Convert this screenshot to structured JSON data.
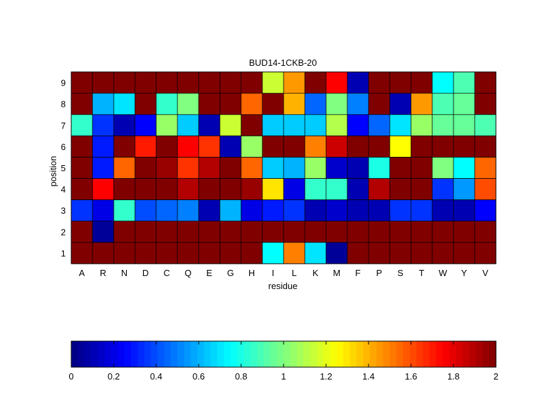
{
  "chart_data": {
    "type": "heatmap",
    "title": "BUD14-1CKB-20",
    "xlabel": "residue",
    "ylabel": "position",
    "x_categories": [
      "A",
      "R",
      "N",
      "D",
      "C",
      "Q",
      "E",
      "G",
      "H",
      "I",
      "L",
      "K",
      "M",
      "F",
      "P",
      "S",
      "T",
      "W",
      "Y",
      "V"
    ],
    "y_categories": [
      "1",
      "2",
      "3",
      "4",
      "5",
      "6",
      "7",
      "8",
      "9"
    ],
    "values": [
      [
        2.0,
        2.0,
        2.0,
        2.0,
        2.0,
        2.0,
        2.0,
        2.0,
        2.0,
        0.75,
        1.5,
        0.7,
        0.05,
        2.0,
        2.0,
        2.0,
        2.0,
        2.0,
        2.0,
        2.0
      ],
      [
        2.0,
        0.05,
        2.0,
        2.0,
        2.0,
        2.0,
        2.0,
        2.0,
        2.0,
        2.0,
        2.0,
        2.0,
        2.0,
        2.0,
        2.0,
        2.0,
        2.0,
        2.0,
        2.0,
        2.0
      ],
      [
        0.35,
        0.2,
        0.85,
        0.4,
        0.45,
        0.5,
        0.1,
        0.6,
        0.2,
        0.3,
        0.35,
        0.1,
        0.15,
        0.1,
        0.1,
        0.35,
        0.35,
        0.1,
        0.1,
        0.25
      ],
      [
        2.0,
        1.75,
        2.0,
        2.0,
        2.0,
        1.9,
        2.0,
        2.0,
        1.95,
        1.3,
        0.2,
        0.85,
        0.85,
        0.1,
        1.9,
        2.0,
        2.0,
        0.35,
        0.55,
        1.6
      ],
      [
        2.0,
        0.3,
        1.55,
        2.0,
        1.95,
        1.65,
        1.9,
        2.0,
        1.55,
        0.65,
        0.6,
        1.05,
        0.15,
        0.1,
        0.8,
        2.0,
        2.0,
        1.0,
        0.75,
        1.55
      ],
      [
        2.0,
        0.3,
        2.0,
        1.7,
        2.0,
        1.75,
        1.65,
        0.1,
        1.05,
        2.0,
        2.0,
        1.5,
        1.85,
        2.0,
        2.0,
        1.25,
        2.0,
        2.0,
        2.0,
        2.0
      ],
      [
        0.85,
        0.35,
        0.1,
        0.25,
        1.05,
        0.65,
        0.1,
        1.15,
        2.0,
        0.65,
        0.65,
        0.65,
        1.1,
        0.25,
        0.45,
        0.7,
        1.05,
        0.95,
        0.95,
        0.9
      ],
      [
        2.0,
        0.6,
        0.7,
        2.0,
        0.85,
        1.0,
        2.0,
        2.0,
        1.55,
        2.0,
        1.4,
        0.45,
        1.0,
        0.5,
        2.0,
        0.1,
        1.45,
        0.9,
        0.95,
        2.0
      ],
      [
        2.0,
        2.0,
        2.0,
        2.0,
        2.0,
        2.0,
        2.0,
        2.0,
        2.0,
        1.15,
        1.45,
        2.0,
        1.75,
        0.1,
        2.0,
        2.0,
        2.0,
        0.75,
        0.9,
        2.0
      ]
    ],
    "colorbar": {
      "colormap": "jet",
      "range": [
        0,
        2
      ],
      "ticks": [
        "0",
        "0.2",
        "0.4",
        "0.6",
        "0.8",
        "1",
        "1.2",
        "1.4",
        "1.6",
        "1.8",
        "2"
      ],
      "levels": 64
    },
    "grid": true,
    "legend": "none"
  }
}
